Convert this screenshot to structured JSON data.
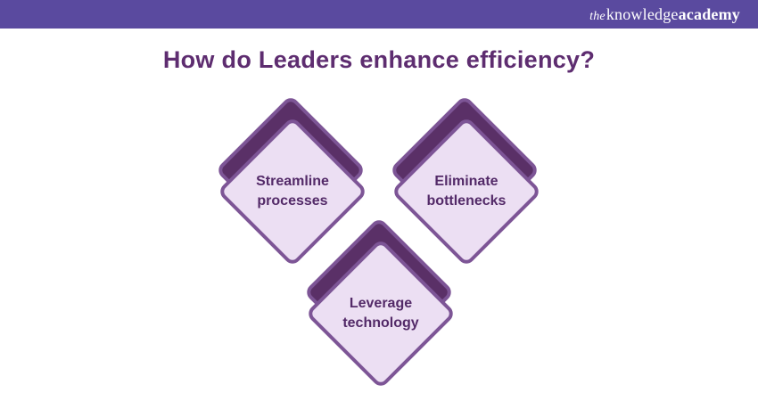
{
  "header": {
    "logo_the": "the",
    "logo_knowledge": "knowledge",
    "logo_academy": "academy"
  },
  "title": "How do Leaders enhance efficiency?",
  "diamonds": [
    {
      "label": "Streamline\nprocesses"
    },
    {
      "label": "Eliminate\nbottlenecks"
    },
    {
      "label": "Leverage\ntechnology"
    }
  ],
  "colors": {
    "header_bg": "#5a4a9f",
    "logo_text": "#ffffff",
    "title_color": "#5e2d70",
    "diamond_border": "#7d5596",
    "diamond_back_fill": "#5a3067",
    "diamond_front_fill": "#ecdff3",
    "label_text": "#532a68"
  }
}
